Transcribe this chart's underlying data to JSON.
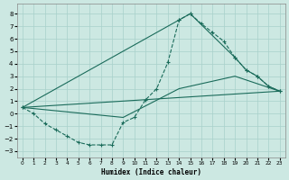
{
  "xlabel": "Humidex (Indice chaleur)",
  "bg_color": "#cce8e2",
  "grid_color": "#a8d0ca",
  "line_color": "#1a6b5a",
  "xlim": [
    -0.5,
    23.5
  ],
  "ylim": [
    -3.5,
    8.8
  ],
  "yticks": [
    -3,
    -2,
    -1,
    0,
    1,
    2,
    3,
    4,
    5,
    6,
    7,
    8
  ],
  "xticks": [
    0,
    1,
    2,
    3,
    4,
    5,
    6,
    7,
    8,
    9,
    10,
    11,
    12,
    13,
    14,
    15,
    16,
    17,
    18,
    19,
    20,
    21,
    22,
    23
  ],
  "curve1_x": [
    0,
    1,
    2,
    3,
    4,
    5,
    6,
    7,
    8,
    9,
    10,
    11,
    12,
    13,
    14,
    15,
    16,
    17,
    18,
    19,
    20,
    21,
    22,
    23
  ],
  "curve1_y": [
    0.5,
    0.0,
    -0.8,
    -1.3,
    -1.8,
    -2.3,
    -2.5,
    -2.5,
    -2.5,
    -0.7,
    -0.3,
    1.1,
    2.0,
    4.1,
    7.5,
    8.0,
    7.2,
    6.5,
    5.8,
    4.5,
    3.5,
    3.0,
    2.2,
    1.8
  ],
  "curve2_x": [
    0,
    14,
    15,
    19,
    20,
    21,
    22,
    23
  ],
  "curve2_y": [
    0.5,
    7.5,
    8.0,
    4.5,
    3.5,
    3.0,
    2.2,
    1.8
  ],
  "line3_x": [
    0,
    23
  ],
  "line3_y": [
    0.5,
    1.8
  ],
  "line4_x": [
    0,
    9,
    14,
    19,
    23
  ],
  "line4_y": [
    0.5,
    -0.3,
    2.0,
    3.0,
    1.8
  ]
}
